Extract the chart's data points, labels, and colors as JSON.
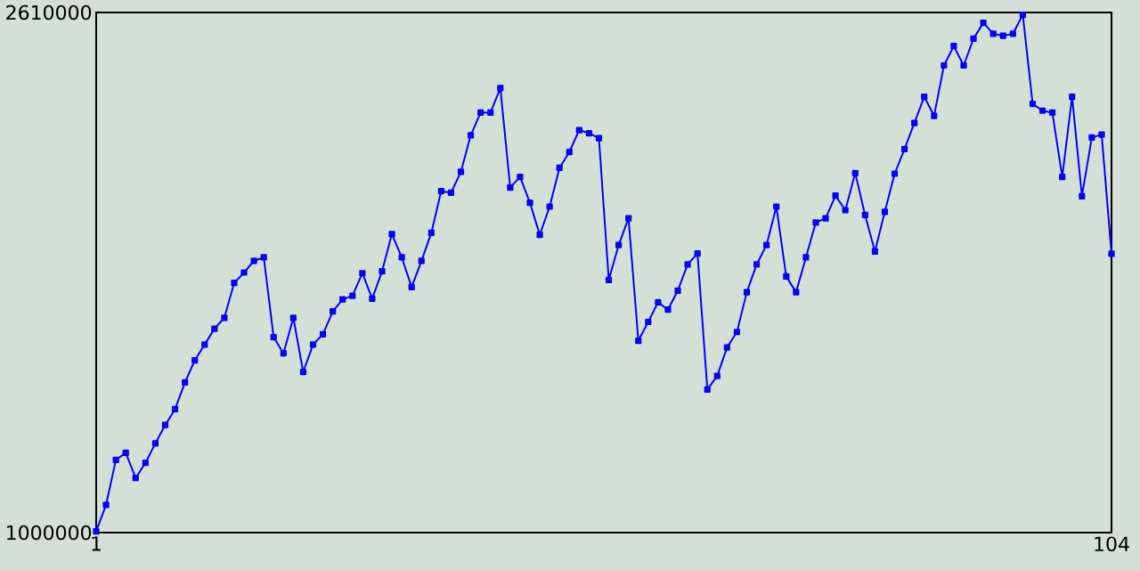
{
  "chart_data": {
    "type": "line",
    "marker": "square",
    "x": [
      1,
      2,
      3,
      4,
      5,
      6,
      7,
      8,
      9,
      10,
      11,
      12,
      13,
      14,
      15,
      16,
      17,
      18,
      19,
      20,
      21,
      22,
      23,
      24,
      25,
      26,
      27,
      28,
      29,
      30,
      31,
      32,
      33,
      34,
      35,
      36,
      37,
      38,
      39,
      40,
      41,
      42,
      43,
      44,
      45,
      46,
      47,
      48,
      49,
      50,
      51,
      52,
      53,
      54,
      55,
      56,
      57,
      58,
      59,
      60,
      61,
      62,
      63,
      64,
      65,
      66,
      67,
      68,
      69,
      70,
      71,
      72,
      73,
      74,
      75,
      76,
      77,
      78,
      79,
      80,
      81,
      82,
      83,
      84,
      85,
      86,
      87,
      88,
      89,
      90,
      91,
      92,
      93,
      94,
      95,
      96,
      97,
      98,
      99,
      100,
      101,
      102,
      103,
      104
    ],
    "series": [
      {
        "color": "#0000ff",
        "values": [
          1004000,
          1086000,
          1225000,
          1247000,
          1169000,
          1216000,
          1276000,
          1333000,
          1382000,
          1465000,
          1533000,
          1582000,
          1631000,
          1665000,
          1773000,
          1805000,
          1841000,
          1852000,
          1605000,
          1555000,
          1665000,
          1497000,
          1582000,
          1614000,
          1685000,
          1722000,
          1733000,
          1803000,
          1724000,
          1809000,
          1924000,
          1852000,
          1760000,
          1841000,
          1928000,
          2057000,
          2052000,
          2117000,
          2230000,
          2300000,
          2300000,
          2376000,
          2068000,
          2101000,
          2021000,
          1922000,
          2009000,
          2129000,
          2178000,
          2246000,
          2236000,
          2221000,
          1782000,
          1890000,
          1973000,
          1594000,
          1652000,
          1713000,
          1690000,
          1749000,
          1830000,
          1864000,
          1443000,
          1485000,
          1573000,
          1621000,
          1744000,
          1830000,
          1890000,
          2009000,
          1793000,
          1744000,
          1852000,
          1960000,
          1973000,
          2043000,
          1998000,
          2113000,
          1983000,
          1870000,
          1993000,
          2111000,
          2187000,
          2268000,
          2349000,
          2290000,
          2446000,
          2506000,
          2446000,
          2529000,
          2578000,
          2544000,
          2538000,
          2544000,
          2603000,
          2327000,
          2306000,
          2300000,
          2101000,
          2349000,
          2041000,
          2223000,
          2232000,
          1863000
        ]
      }
    ],
    "xlim": [
      1,
      104
    ],
    "xticks": [
      1,
      104
    ],
    "ylim": [
      1000000,
      2610000
    ],
    "yticks": [
      1000000,
      2610000
    ]
  }
}
